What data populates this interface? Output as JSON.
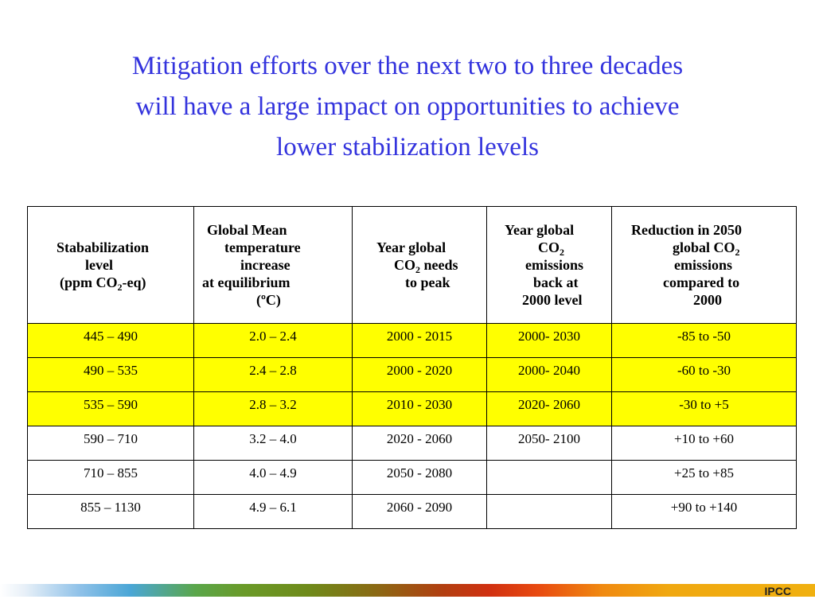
{
  "title": {
    "line1": "Mitigation efforts over the next two to three decades",
    "line2": "will have a large impact on opportunities to achieve",
    "line3": "lower stabilization levels"
  },
  "table": {
    "headers": {
      "col1": {
        "line1": "Stababilization",
        "line2": "level",
        "line3_pre": "(ppm CO",
        "line3_sub": "2",
        "line3_post": "-eq)"
      },
      "col2": {
        "line1": "Global Mean",
        "line2": "temperature",
        "line3": "increase",
        "line4": "at equilibrium",
        "line5": "(ºC)"
      },
      "col3": {
        "line1": "Year global",
        "line2_pre": "CO",
        "line2_sub": "2",
        "line2_post": " needs",
        "line3": "to peak"
      },
      "col4": {
        "line1": "Year global",
        "line2_pre": "CO",
        "line2_sub": "2",
        "line3": "emissions",
        "line4": "back at",
        "line5": "2000 level"
      },
      "col5": {
        "line1": "Reduction in 2050",
        "line2_pre": "global CO",
        "line2_sub": "2",
        "line3": "emissions",
        "line4": "compared to",
        "line5": "2000"
      }
    },
    "rows": [
      {
        "level": "445 – 490",
        "temp": "2.0 – 2.4",
        "peak": "2000 - 2015",
        "back": "2000- 2030",
        "reduction": "-85 to -50",
        "highlight": true
      },
      {
        "level": "490 – 535",
        "temp": "2.4 – 2.8",
        "peak": "2000 - 2020",
        "back": "2000- 2040",
        "reduction": "-60 to -30",
        "highlight": true
      },
      {
        "level": "535 – 590",
        "temp": "2.8 – 3.2",
        "peak": "2010 - 2030",
        "back": "2020- 2060",
        "reduction": "-30 to +5",
        "highlight": true
      },
      {
        "level": "590 – 710",
        "temp": "3.2 – 4.0",
        "peak": "2020 - 2060",
        "back": "2050- 2100",
        "reduction": "+10 to +60",
        "highlight": false
      },
      {
        "level": "710 – 855",
        "temp": "4.0 – 4.9",
        "peak": "2050 - 2080",
        "back": "",
        "reduction": "+25 to +85",
        "highlight": false
      },
      {
        "level": "855 – 1130",
        "temp": "4.9 – 6.1",
        "peak": "2060 - 2090",
        "back": "",
        "reduction": "+90 to +140",
        "highlight": false
      }
    ]
  },
  "colors": {
    "title": "#3333dd",
    "highlight_row": "#ffff00"
  },
  "footer": {
    "label": "IPCC"
  }
}
